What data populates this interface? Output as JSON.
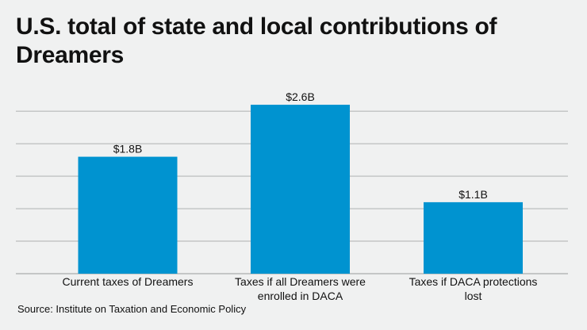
{
  "chart_data": {
    "type": "bar",
    "title": "U.S. total of state and local contributions of Dreamers",
    "categories": [
      [
        "Current taxes of Dreamers"
      ],
      [
        "Taxes if all Dreamers were",
        "enrolled in DACA"
      ],
      [
        "Taxes if DACA protections",
        "lost"
      ]
    ],
    "values": [
      1.8,
      2.6,
      1.1
    ],
    "data_labels": [
      "$1.8B",
      "$2.6B",
      "$1.1B"
    ],
    "unit": "billion USD",
    "ylim": [
      0,
      2.5
    ],
    "grid_step": 0.5,
    "grid": true,
    "y_tick_labels_shown": false,
    "xlabel": "",
    "ylabel": "",
    "colors": {
      "bar": "#0093d0",
      "grid": "#c4c6c6",
      "background": "#f0f1f1"
    }
  },
  "source": "Source: Institute on Taxation and Economic Policy"
}
